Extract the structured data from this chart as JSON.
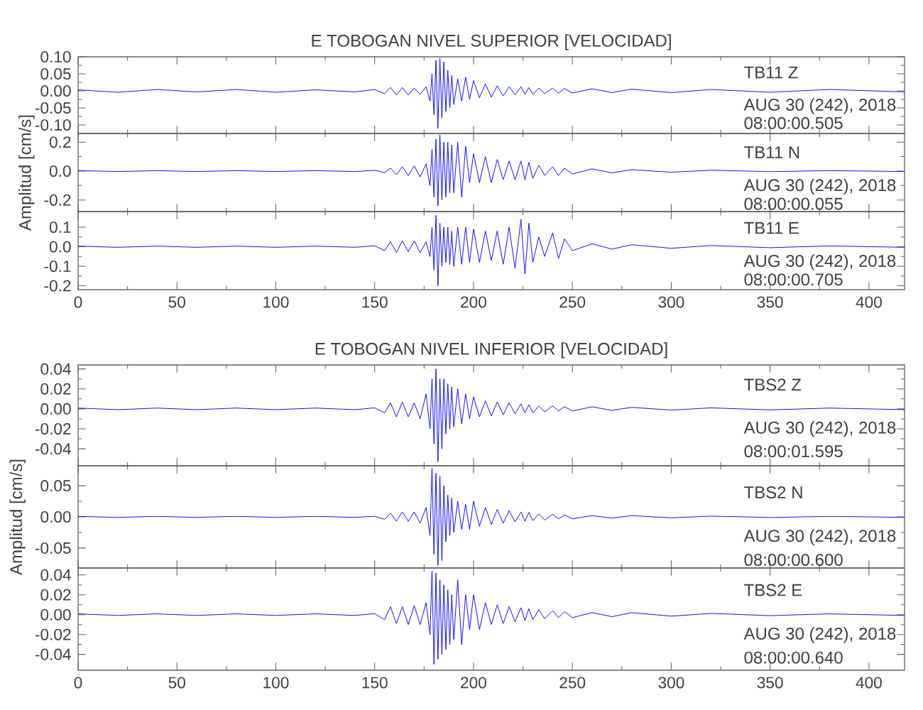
{
  "chart_data": [
    {
      "type": "line",
      "title": "E TOBOGAN NIVEL SUPERIOR [VELOCIDAD]",
      "annotations": [
        "TB11 Z",
        "AUG 30 (242), 2018",
        "08:00:00.505"
      ],
      "tick_labels": "y",
      "color": "#0000ff",
      "xlim": [
        0,
        418
      ],
      "xticks": [
        0,
        50,
        100,
        150,
        200,
        250,
        300,
        350,
        400
      ],
      "ylim": [
        -0.125,
        0.1
      ],
      "yticks": [
        {
          "value": 0.1,
          "label": "0.10"
        },
        {
          "value": 0.05,
          "label": "0.05"
        },
        {
          "value": 0,
          "label": "0.00"
        },
        {
          "value": -0.05,
          "label": "-0.05"
        },
        {
          "value": -0.1,
          "label": "-0.10"
        }
      ],
      "x": [
        0,
        20,
        40,
        60,
        80,
        100,
        120,
        140,
        150,
        155,
        158,
        161,
        164,
        167,
        170,
        173,
        176,
        178,
        179,
        180,
        181,
        182,
        183,
        184,
        185,
        186,
        187,
        188,
        189,
        190,
        192,
        194,
        196,
        198,
        200,
        203,
        206,
        209,
        212,
        215,
        218,
        221,
        224,
        226,
        228,
        230,
        233,
        236,
        240,
        243,
        246,
        250,
        260,
        270,
        280,
        300,
        320,
        350,
        380,
        418
      ],
      "values": [
        0.003,
        -0.004,
        0.004,
        -0.003,
        0.004,
        -0.004,
        0.003,
        -0.003,
        0.004,
        -0.008,
        0.01,
        -0.012,
        0.01,
        -0.012,
        0.008,
        -0.01,
        0.012,
        -0.03,
        0.05,
        -0.07,
        0.09,
        -0.11,
        0.095,
        -0.08,
        0.085,
        -0.06,
        0.06,
        -0.05,
        0.045,
        -0.04,
        0.035,
        -0.03,
        0.04,
        -0.025,
        0.03,
        -0.02,
        0.02,
        -0.018,
        0.015,
        -0.015,
        0.012,
        -0.012,
        0.012,
        -0.01,
        0.01,
        -0.01,
        0.008,
        -0.008,
        0.008,
        -0.007,
        0.007,
        -0.006,
        0.006,
        -0.005,
        0.005,
        -0.005,
        0.004,
        -0.004,
        0.004,
        -0.003
      ]
    },
    {
      "type": "line",
      "ylabel": "Amplitud [cm/s]",
      "annotations": [
        "TB11 N",
        "AUG 30 (242), 2018",
        "08:00:00.055"
      ],
      "tick_labels": "y",
      "color": "#0000ff",
      "xlim": [
        0,
        418
      ],
      "xticks": [
        0,
        50,
        100,
        150,
        200,
        250,
        300,
        350,
        400
      ],
      "ylim": [
        -0.28,
        0.26
      ],
      "yticks": [
        {
          "value": 0.2,
          "label": "0.2"
        },
        {
          "value": 0,
          "label": "0.0"
        },
        {
          "value": -0.2,
          "label": "-0.2"
        }
      ],
      "x": [
        0,
        20,
        40,
        60,
        80,
        100,
        120,
        140,
        150,
        155,
        158,
        161,
        164,
        167,
        170,
        173,
        176,
        178,
        179,
        180,
        181,
        182,
        183,
        184,
        185,
        186,
        187,
        188,
        189,
        190,
        192,
        194,
        196,
        198,
        200,
        203,
        206,
        209,
        212,
        215,
        218,
        221,
        224,
        226,
        228,
        230,
        233,
        236,
        240,
        243,
        246,
        250,
        260,
        270,
        280,
        300,
        320,
        350,
        380,
        418
      ],
      "values": [
        0.003,
        -0.003,
        0.003,
        -0.003,
        0.003,
        -0.003,
        0.003,
        -0.003,
        0.005,
        -0.01,
        0.02,
        -0.025,
        0.03,
        -0.03,
        0.035,
        -0.04,
        0.05,
        -0.1,
        0.15,
        -0.18,
        0.22,
        -0.24,
        0.25,
        -0.2,
        0.2,
        -0.18,
        0.2,
        -0.15,
        0.18,
        -0.15,
        0.2,
        -0.18,
        0.17,
        -0.08,
        0.12,
        -0.08,
        0.1,
        -0.08,
        0.08,
        -0.06,
        0.07,
        -0.06,
        0.07,
        -0.06,
        0.06,
        -0.05,
        0.04,
        -0.03,
        0.03,
        -0.03,
        0.02,
        -0.02,
        0.015,
        -0.012,
        0.01,
        -0.008,
        0.006,
        -0.004,
        0.003,
        -0.003
      ]
    },
    {
      "type": "line",
      "annotations": [
        "TB11 E",
        "AUG 30 (242), 2018",
        "08:00:00.705"
      ],
      "color": "#0000ff",
      "xlim": [
        0,
        418
      ],
      "xticks": [
        0,
        50,
        100,
        150,
        200,
        250,
        300,
        350,
        400
      ],
      "ylim": [
        -0.22,
        0.18
      ],
      "yticks": [
        {
          "value": 0.1,
          "label": "0.1"
        },
        {
          "value": 0,
          "label": "0.0"
        },
        {
          "value": -0.1,
          "label": "-0.1"
        },
        {
          "value": -0.2,
          "label": "-0.2"
        }
      ],
      "x": [
        0,
        20,
        40,
        60,
        80,
        100,
        120,
        140,
        150,
        155,
        158,
        161,
        164,
        167,
        170,
        173,
        176,
        178,
        179,
        180,
        181,
        182,
        183,
        184,
        185,
        186,
        187,
        188,
        189,
        190,
        192,
        194,
        196,
        198,
        200,
        203,
        206,
        209,
        212,
        215,
        218,
        221,
        224,
        226,
        228,
        230,
        233,
        236,
        240,
        243,
        246,
        250,
        260,
        270,
        280,
        300,
        320,
        350,
        380,
        418
      ],
      "values": [
        0.003,
        -0.003,
        0.003,
        -0.003,
        0.003,
        -0.003,
        0.003,
        -0.003,
        0.005,
        -0.02,
        0.025,
        -0.03,
        0.03,
        -0.025,
        0.03,
        -0.03,
        0.025,
        -0.05,
        0.1,
        -0.12,
        0.16,
        -0.2,
        0.12,
        -0.1,
        0.1,
        -0.08,
        0.1,
        -0.09,
        0.08,
        -0.1,
        0.1,
        -0.09,
        0.1,
        -0.08,
        0.09,
        -0.08,
        0.08,
        -0.07,
        0.08,
        -0.09,
        0.1,
        -0.11,
        0.14,
        -0.14,
        0.12,
        -0.08,
        0.05,
        -0.05,
        0.07,
        -0.06,
        0.04,
        -0.02,
        0.015,
        -0.012,
        0.01,
        -0.008,
        0.006,
        -0.005,
        0.004,
        -0.003
      ]
    },
    {
      "type": "line",
      "title": "E TOBOGAN NIVEL INFERIOR [VELOCIDAD]",
      "annotations": [
        "TBS2 Z",
        "AUG 30 (242), 2018",
        "08:00:01.595"
      ],
      "tick_labels": "y",
      "color": "#0000ff",
      "xlim": [
        0,
        418
      ],
      "xticks": [
        0,
        50,
        100,
        150,
        200,
        250,
        300,
        350,
        400
      ],
      "ylim": [
        -0.057,
        0.044
      ],
      "yticks": [
        {
          "value": 0.04,
          "label": "0.04"
        },
        {
          "value": 0.02,
          "label": "0.02"
        },
        {
          "value": 0,
          "label": "0.00"
        },
        {
          "value": -0.02,
          "label": "-0.02"
        },
        {
          "value": -0.04,
          "label": "-0.04"
        }
      ],
      "x": [
        0,
        20,
        40,
        60,
        80,
        100,
        120,
        140,
        150,
        155,
        158,
        161,
        164,
        167,
        170,
        173,
        176,
        178,
        179,
        180,
        181,
        182,
        183,
        184,
        185,
        186,
        187,
        188,
        189,
        190,
        192,
        194,
        196,
        198,
        200,
        203,
        206,
        209,
        212,
        215,
        218,
        221,
        224,
        226,
        228,
        230,
        233,
        236,
        240,
        243,
        246,
        250,
        260,
        270,
        280,
        300,
        320,
        350,
        380,
        418
      ],
      "values": [
        0.0008,
        -0.0008,
        0.0008,
        -0.0008,
        0.0008,
        -0.0008,
        0.0008,
        -0.0008,
        0.001,
        -0.004,
        0.006,
        -0.008,
        0.007,
        -0.008,
        0.006,
        -0.01,
        0.015,
        -0.02,
        0.03,
        -0.035,
        0.04,
        -0.053,
        0.03,
        -0.04,
        0.03,
        -0.025,
        0.025,
        -0.02,
        0.022,
        -0.018,
        0.02,
        -0.015,
        0.015,
        -0.01,
        0.012,
        -0.008,
        0.008,
        -0.007,
        0.007,
        -0.006,
        0.006,
        -0.005,
        0.005,
        -0.004,
        0.004,
        -0.004,
        0.003,
        -0.003,
        0.003,
        -0.002,
        0.002,
        -0.002,
        0.002,
        -0.0015,
        0.0015,
        -0.0012,
        0.001,
        -0.001,
        0.0008,
        -0.0008
      ]
    },
    {
      "type": "line",
      "ylabel": "Amplitud [cm/s]",
      "annotations": [
        "TBS2 N",
        "AUG 30 (242), 2018",
        "08:00:00.600"
      ],
      "tick_labels": "y",
      "color": "#0000ff",
      "xlim": [
        0,
        418
      ],
      "xticks": [
        0,
        50,
        100,
        150,
        200,
        250,
        300,
        350,
        400
      ],
      "ylim": [
        -0.082,
        0.082
      ],
      "yticks": [
        {
          "value": 0.05,
          "label": "0.05"
        },
        {
          "value": 0,
          "label": "0.00"
        },
        {
          "value": -0.05,
          "label": "-0.05"
        }
      ],
      "x": [
        0,
        20,
        40,
        60,
        80,
        100,
        120,
        140,
        150,
        155,
        158,
        161,
        164,
        167,
        170,
        173,
        176,
        178,
        179,
        180,
        181,
        182,
        183,
        184,
        185,
        186,
        187,
        188,
        189,
        190,
        192,
        194,
        196,
        198,
        200,
        203,
        206,
        209,
        212,
        215,
        218,
        221,
        224,
        226,
        228,
        230,
        233,
        236,
        240,
        243,
        246,
        250,
        260,
        270,
        280,
        300,
        320,
        350,
        380,
        418
      ],
      "values": [
        0.0008,
        -0.0008,
        0.0008,
        -0.0008,
        0.0008,
        -0.0008,
        0.0008,
        -0.0008,
        0.001,
        -0.004,
        0.006,
        -0.007,
        0.008,
        -0.007,
        0.008,
        -0.01,
        0.015,
        -0.03,
        0.078,
        -0.06,
        0.07,
        -0.078,
        0.065,
        -0.07,
        0.05,
        -0.04,
        0.035,
        -0.03,
        0.03,
        -0.025,
        0.025,
        -0.02,
        0.02,
        -0.02,
        0.025,
        -0.015,
        0.015,
        -0.012,
        0.012,
        -0.01,
        0.01,
        -0.008,
        0.008,
        -0.007,
        0.007,
        -0.006,
        0.005,
        -0.005,
        0.004,
        -0.003,
        0.003,
        -0.003,
        0.002,
        -0.002,
        0.002,
        -0.0015,
        0.0012,
        -0.001,
        0.0008,
        -0.0008
      ]
    },
    {
      "type": "line",
      "annotations": [
        "TBS2 E",
        "AUG 30 (242), 2018",
        "08:00:00.640"
      ],
      "color": "#0000ff",
      "xlim": [
        0,
        418
      ],
      "xticks": [
        0,
        50,
        100,
        150,
        200,
        250,
        300,
        350,
        400
      ],
      "ylim": [
        -0.056,
        0.047
      ],
      "yticks": [
        {
          "value": 0.04,
          "label": "0.04"
        },
        {
          "value": 0.02,
          "label": "0.02"
        },
        {
          "value": 0,
          "label": "0.00"
        },
        {
          "value": -0.02,
          "label": "-0.02"
        },
        {
          "value": -0.04,
          "label": "-0.04"
        }
      ],
      "x": [
        0,
        20,
        40,
        60,
        80,
        100,
        120,
        140,
        150,
        155,
        158,
        161,
        164,
        167,
        170,
        173,
        176,
        178,
        179,
        180,
        181,
        182,
        183,
        184,
        185,
        186,
        187,
        188,
        189,
        190,
        192,
        194,
        196,
        198,
        200,
        203,
        206,
        209,
        212,
        215,
        218,
        221,
        224,
        226,
        228,
        230,
        233,
        236,
        240,
        243,
        246,
        250,
        260,
        270,
        280,
        300,
        320,
        350,
        380,
        418
      ],
      "values": [
        0.0008,
        -0.0008,
        0.0008,
        -0.0008,
        0.0008,
        -0.0008,
        0.0008,
        -0.0008,
        0.001,
        -0.005,
        0.008,
        -0.009,
        0.008,
        -0.01,
        0.009,
        -0.01,
        0.012,
        -0.02,
        0.044,
        -0.05,
        0.042,
        -0.045,
        0.035,
        -0.04,
        0.03,
        -0.035,
        0.025,
        -0.03,
        0.02,
        -0.025,
        0.035,
        -0.03,
        0.02,
        -0.015,
        0.02,
        -0.015,
        0.012,
        -0.01,
        0.01,
        -0.009,
        0.008,
        -0.007,
        0.007,
        -0.006,
        0.006,
        -0.005,
        0.005,
        -0.004,
        0.004,
        -0.003,
        0.003,
        -0.003,
        0.002,
        -0.002,
        0.002,
        -0.0015,
        0.0012,
        -0.001,
        0.0008,
        -0.0008
      ]
    }
  ]
}
